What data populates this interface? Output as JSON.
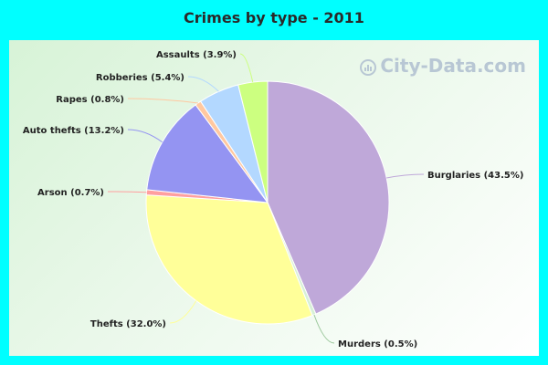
{
  "chart_data": {
    "type": "pie",
    "title": "Crimes by type - 2011",
    "slices": [
      {
        "name": "Burglaries",
        "value": 43.5,
        "label": "Burglaries (43.5%)",
        "color": "#bfa8d9"
      },
      {
        "name": "Murders",
        "value": 0.5,
        "label": "Murders (0.5%)",
        "color": "#d7f0d7"
      },
      {
        "name": "Thefts",
        "value": 32.0,
        "label": "Thefts (32.0%)",
        "color": "#ffff99"
      },
      {
        "name": "Arson",
        "value": 0.7,
        "label": "Arson (0.7%)",
        "color": "#ff9f9f"
      },
      {
        "name": "Auto thefts",
        "value": 13.2,
        "label": "Auto thefts (13.2%)",
        "color": "#9494f2"
      },
      {
        "name": "Rapes",
        "value": 0.8,
        "label": "Rapes (0.8%)",
        "color": "#ffc8a0"
      },
      {
        "name": "Robberies",
        "value": 5.4,
        "label": "Robberies (5.4%)",
        "color": "#b3d8ff"
      },
      {
        "name": "Assaults",
        "value": 3.9,
        "label": "Assaults (3.9%)",
        "color": "#ccff80"
      }
    ]
  },
  "watermark": {
    "text": "City-Data.com"
  }
}
